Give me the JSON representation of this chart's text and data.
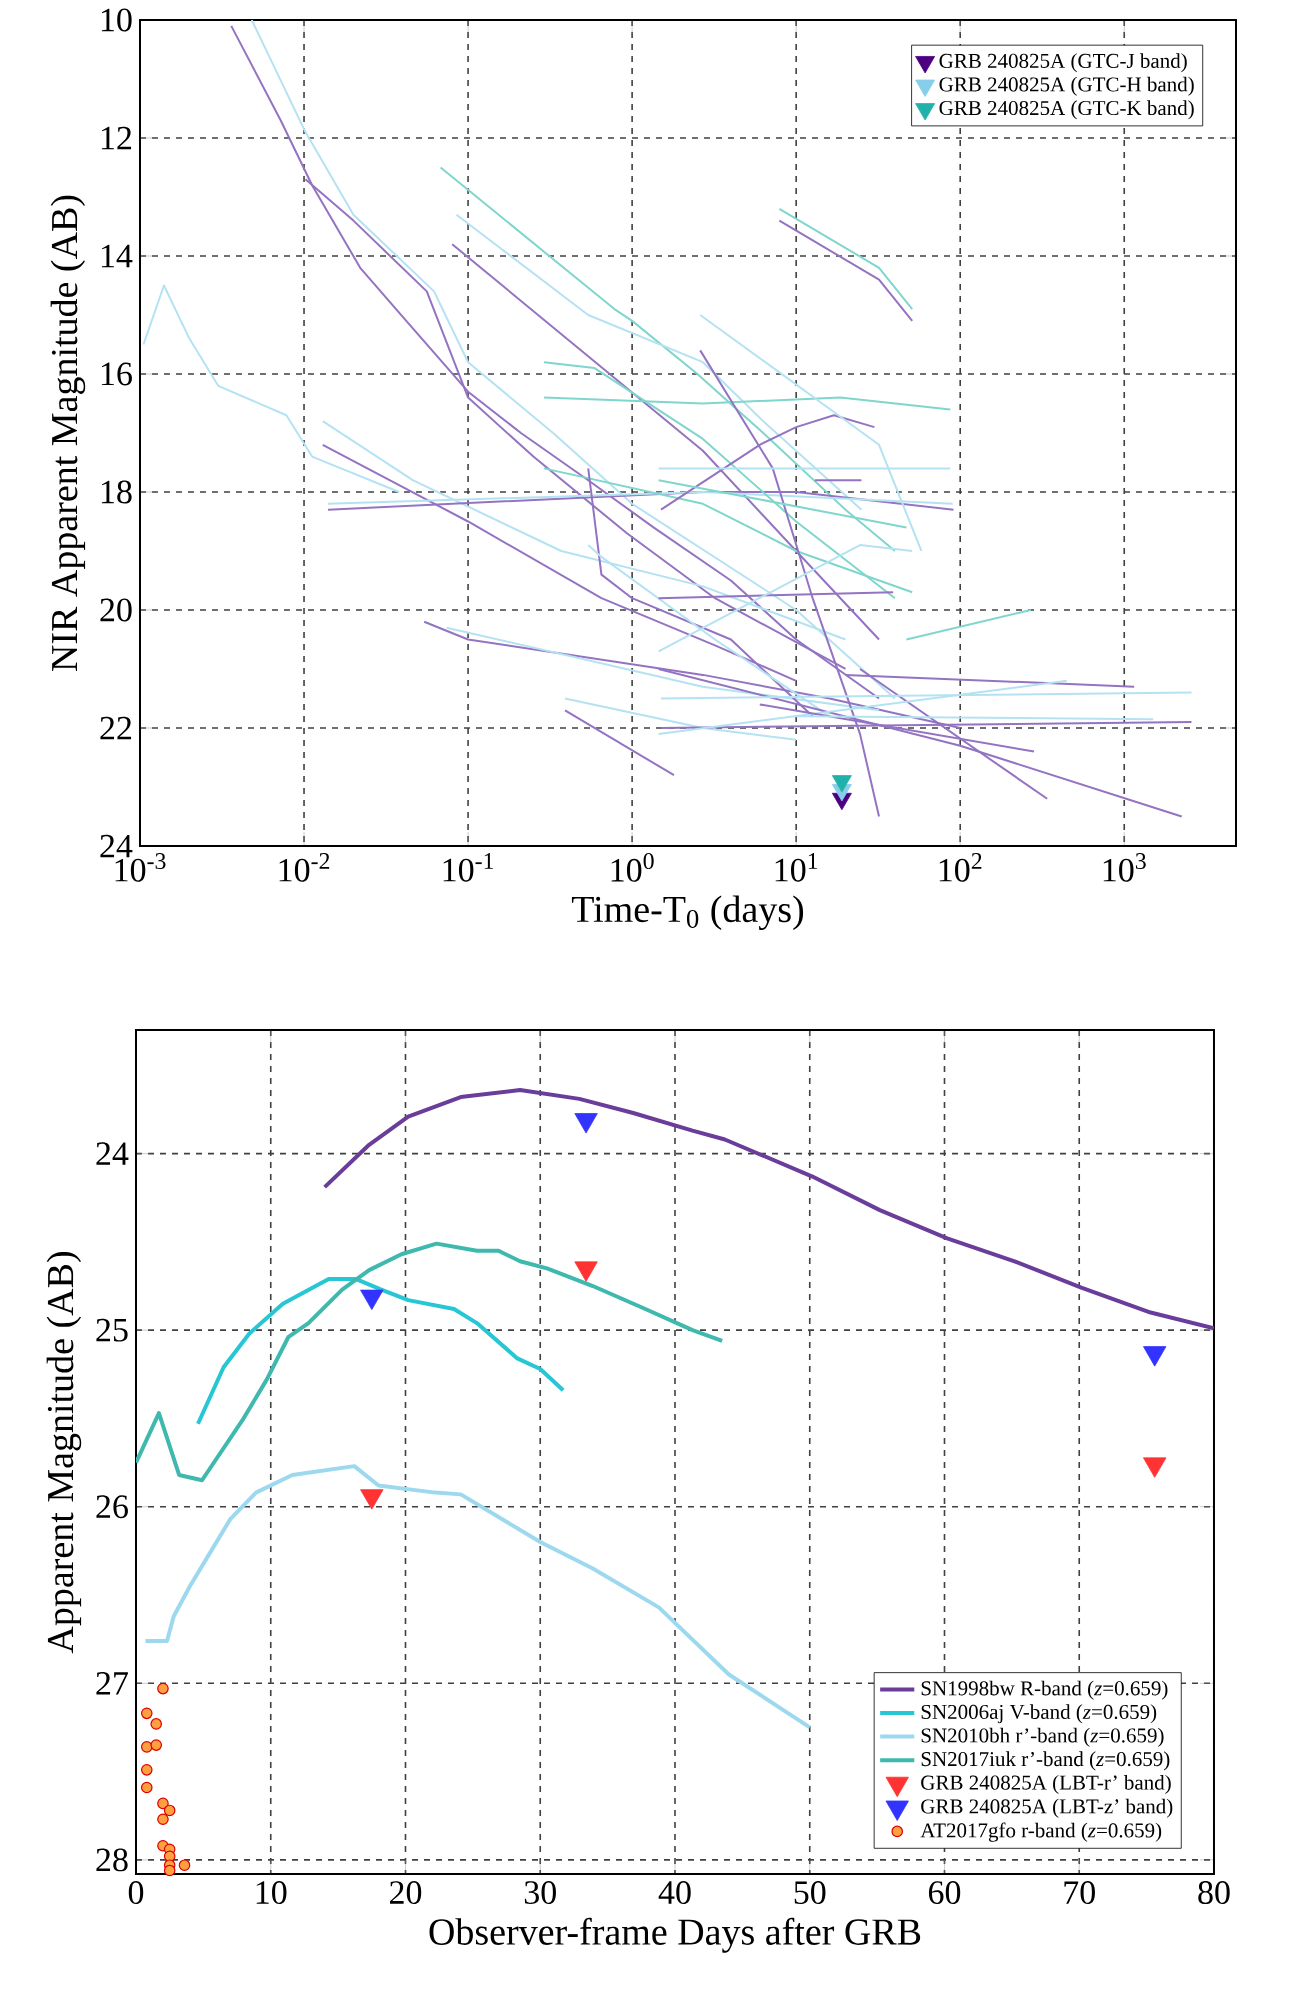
{
  "chart_data": [
    {
      "type": "line",
      "xlabel": "Time-T$_{0}$ (days)",
      "ylabel": "NIR Apparent Magnitude (AB)",
      "log": "x",
      "xlim": [
        0.001,
        4800
      ],
      "ylim": [
        24,
        10
      ],
      "grid": true,
      "legend": "top right",
      "xticks": [
        {
          "value": 0.001,
          "label": "10$^{-3}$"
        },
        {
          "value": 0.01,
          "label": "10$^{-2}$"
        },
        {
          "value": 0.1,
          "label": "10$^{-1}$"
        },
        {
          "value": 1,
          "label": "10$^{0}$"
        },
        {
          "value": 10,
          "label": "10$^{1}$"
        },
        {
          "value": 100,
          "label": "10$^{2}$"
        },
        {
          "value": 1000,
          "label": "10$^{3}$"
        }
      ],
      "yticks": [
        10,
        12,
        14,
        16,
        18,
        20,
        22,
        24
      ],
      "series": [
        {
          "color": "#9373c2",
          "x": [
            0.0036,
            0.0072,
            0.0112,
            0.022,
            0.042,
            0.1,
            0.21,
            0.54,
            1.35,
            4,
            10,
            32
          ],
          "values": [
            10.1,
            11.7,
            12.8,
            14.2,
            15.1,
            16.3,
            17.0,
            17.8,
            18.6,
            19.5,
            20.5,
            21.5
          ]
        },
        {
          "color": "#b5e2f2",
          "x": [
            0.0048,
            0.0102,
            0.02,
            0.062,
            0.1,
            0.33,
            1,
            10,
            40
          ],
          "values": [
            10.0,
            11.9,
            13.3,
            14.6,
            15.8,
            17.0,
            18.2,
            20.0,
            21.5
          ]
        },
        {
          "color": "#9373c2",
          "x": [
            0.0102,
            0.02,
            0.056,
            0.1,
            0.25,
            0.93,
            3.2,
            20
          ],
          "values": [
            12.7,
            13.4,
            14.6,
            16.4,
            17.4,
            18.7,
            19.8,
            21.0
          ]
        },
        {
          "color": "#b5e2f2",
          "x": [
            0.00105,
            0.0014,
            0.002,
            0.003,
            0.0078,
            0.0112,
            0.038
          ],
          "values": [
            15.5,
            14.5,
            15.4,
            16.2,
            16.7,
            17.4,
            18.0
          ]
        },
        {
          "color": "#7fd6cc",
          "x": [
            0.068,
            0.78,
            1,
            2.5,
            6.3,
            20,
            40
          ],
          "values": [
            12.5,
            14.9,
            15.1,
            16.0,
            17.0,
            18.3,
            19.0
          ]
        },
        {
          "color": "#b5e2f2",
          "x": [
            0.085,
            0.54,
            2.7,
            6.3,
            25
          ],
          "values": [
            13.3,
            15.0,
            15.8,
            16.8,
            18.3
          ]
        },
        {
          "color": "#9373c2",
          "x": [
            0.08,
            2.7,
            10,
            32
          ],
          "values": [
            13.8,
            17.3,
            19.0,
            20.5
          ]
        },
        {
          "color": "#b5e2f2",
          "x": [
            0.013,
            0.046,
            0.37,
            2.7,
            20
          ],
          "values": [
            16.8,
            17.8,
            19.0,
            19.6,
            20.5
          ]
        },
        {
          "color": "#9373c2",
          "x": [
            0.013,
            0.1,
            0.65,
            3.2,
            10
          ],
          "values": [
            17.2,
            18.5,
            19.8,
            20.6,
            21.2
          ]
        },
        {
          "color": "#9373c2",
          "x": [
            0.014,
            2.7,
            10,
            91
          ],
          "values": [
            18.3,
            18.0,
            18.0,
            18.3
          ]
        },
        {
          "color": "#b5e2f2",
          "x": [
            0.014,
            2.7,
            90
          ],
          "values": [
            18.2,
            18.0,
            18.2
          ]
        },
        {
          "color": "#9373c2",
          "x": [
            0.054,
            0.1,
            2.7,
            16,
            100
          ],
          "values": [
            20.2,
            20.5,
            21.1,
            21.5,
            22.0
          ]
        },
        {
          "color": "#b5e2f2",
          "x": [
            0.074,
            2.7,
            32
          ],
          "values": [
            20.3,
            21.3,
            21.7
          ]
        },
        {
          "color": "#b5e2f2",
          "x": [
            0.39,
            2.7,
            10
          ],
          "values": [
            21.5,
            22.0,
            22.2
          ]
        },
        {
          "color": "#9373c2",
          "x": [
            0.39,
            1.8
          ],
          "values": [
            21.7,
            22.8
          ]
        },
        {
          "color": "#7fd6cc",
          "x": [
            0.29,
            0.59,
            2.7,
            10,
            40
          ],
          "values": [
            15.8,
            15.9,
            17.1,
            18.5,
            19.8
          ]
        },
        {
          "color": "#7fd6cc",
          "x": [
            0.29,
            2.7,
            18.6,
            87
          ],
          "values": [
            16.4,
            16.5,
            16.4,
            16.6
          ]
        },
        {
          "color": "#7fd6cc",
          "x": [
            0.29,
            2.7,
            10,
            51
          ],
          "values": [
            17.6,
            18.2,
            19.0,
            19.7
          ]
        },
        {
          "color": "#9373c2",
          "x": [
            0.54,
            0.65,
            1,
            4,
            12.6
          ],
          "values": [
            17.6,
            19.4,
            19.8,
            20.5,
            21.8
          ]
        },
        {
          "color": "#b5e2f2",
          "x": [
            0.54,
            0.65,
            3.2,
            16
          ],
          "values": [
            18.9,
            19.1,
            20.5,
            21.8
          ]
        },
        {
          "color": "#7fd6cc",
          "x": [
            7.9,
            32,
            51
          ],
          "values": [
            13.2,
            14.2,
            14.9
          ]
        },
        {
          "color": "#9373c2",
          "x": [
            7.9,
            32,
            51
          ],
          "values": [
            13.4,
            14.4,
            15.1
          ]
        },
        {
          "color": "#9373c2",
          "x": [
            1.5,
            6,
            10,
            17,
            30
          ],
          "values": [
            18.3,
            17.2,
            16.9,
            16.7,
            16.9
          ]
        },
        {
          "color": "#9373c2",
          "x": [
            2.6,
            7.2,
            12.6,
            24.5,
            32
          ],
          "values": [
            15.6,
            17.6,
            19.8,
            22.1,
            23.5
          ]
        },
        {
          "color": "#9373c2",
          "x": [
            1.45,
            100,
            2240
          ],
          "values": [
            21.0,
            22.3,
            23.5
          ]
        },
        {
          "color": "#9373c2",
          "x": [
            24.5,
            339
          ],
          "values": [
            21.0,
            23.2
          ]
        },
        {
          "color": "#9373c2",
          "x": [
            1.5,
            2570
          ],
          "values": [
            22.0,
            21.9
          ]
        },
        {
          "color": "#b5e2f2",
          "x": [
            1.5,
            2570
          ],
          "values": [
            21.5,
            21.4
          ]
        },
        {
          "color": "#9373c2",
          "x": [
            20,
            1150
          ],
          "values": [
            21.1,
            21.3
          ]
        },
        {
          "color": "#7fd6cc",
          "x": [
            47,
            270
          ],
          "values": [
            20.5,
            20.0
          ]
        },
        {
          "color": "#b5e2f2",
          "x": [
            1.45,
            87
          ],
          "values": [
            17.6,
            17.6
          ]
        },
        {
          "color": "#9373c2",
          "x": [
            13,
            25
          ],
          "values": [
            17.8,
            17.8
          ]
        },
        {
          "color": "#b5e2f2",
          "x": [
            2.6,
            32,
            58
          ],
          "values": [
            15.0,
            17.2,
            19.0
          ]
        },
        {
          "color": "#7fd6cc",
          "x": [
            1.45,
            47
          ],
          "values": [
            17.8,
            18.6
          ]
        },
        {
          "color": "#b5e2f2",
          "x": [
            1.45,
            447
          ],
          "values": [
            22.1,
            21.2
          ]
        },
        {
          "color": "#9373c2",
          "x": [
            1.45,
            39
          ],
          "values": [
            19.8,
            19.7
          ]
        },
        {
          "color": "#b5e2f2",
          "x": [
            1.45,
            24.5,
            51
          ],
          "values": [
            20.7,
            18.9,
            19.0
          ]
        },
        {
          "color": "#9373c2",
          "x": [
            6,
            282
          ],
          "values": [
            21.6,
            22.4
          ]
        },
        {
          "color": "#b5e2f2",
          "x": [
            10,
            1500
          ],
          "values": [
            21.8,
            21.85
          ]
        },
        {
          "type": "scatter",
          "marker": "triangle",
          "name": "GRB 240825A (GTC-J band)",
          "color": "#4b0082",
          "x": [
            19
          ],
          "values": [
            23.2
          ]
        },
        {
          "type": "scatter",
          "marker": "triangle",
          "name": "GRB 240825A (GTC-H band)",
          "color": "#87ceeb",
          "x": [
            19
          ],
          "values": [
            23.05
          ]
        },
        {
          "type": "scatter",
          "marker": "triangle",
          "name": "GRB 240825A (GTC-K band)",
          "color": "#20b2aa",
          "x": [
            19
          ],
          "values": [
            22.9
          ]
        }
      ]
    },
    {
      "type": "line",
      "xlabel": "Observer-frame Days after GRB",
      "ylabel": "Apparent Magnitude (AB)",
      "xlim": [
        0,
        80
      ],
      "ylim": [
        28.08,
        23.3
      ],
      "grid": true,
      "legend": "bottom right",
      "xticks": [
        0,
        10,
        20,
        30,
        40,
        50,
        60,
        70,
        80
      ],
      "yticks": [
        24,
        25,
        26,
        27,
        28
      ],
      "series": [
        {
          "name": "SN1998bw R-band (*z*=0.659)",
          "color": "#6a3d9a",
          "x": [
            14.0,
            17.3,
            20.2,
            24.1,
            28.5,
            32.9,
            36.9,
            41.3,
            43.7,
            50.2,
            55.2,
            60.2,
            65.2,
            70.2,
            75.3,
            80
          ],
          "values": [
            24.19,
            23.95,
            23.79,
            23.68,
            23.64,
            23.69,
            23.77,
            23.87,
            23.92,
            24.13,
            24.32,
            24.48,
            24.61,
            24.76,
            24.9,
            24.99
          ]
        },
        {
          "name": "SN2006aj V-band (*z*=0.659)",
          "color": "#27c6d4",
          "x": [
            4.6,
            6.5,
            8.4,
            10.9,
            14.3,
            16.3,
            18.2,
            20.2,
            23.6,
            25.3,
            28.3,
            30.0,
            31.7
          ],
          "values": [
            25.53,
            25.21,
            25.02,
            24.85,
            24.71,
            24.71,
            24.77,
            24.83,
            24.88,
            24.96,
            25.16,
            25.22,
            25.34
          ]
        },
        {
          "name": "SN2010bh r’-band (*z*=0.659)",
          "color": "#9dd9ee",
          "x": [
            0.7,
            2.3,
            2.8,
            4.0,
            5.5,
            7.0,
            8.9,
            11.6,
            16.2,
            18.0,
            22.2,
            24.1,
            30.0,
            33.9,
            38.8,
            44.0,
            50.0
          ],
          "values": [
            26.76,
            26.76,
            26.62,
            26.45,
            26.26,
            26.07,
            25.92,
            25.82,
            25.77,
            25.88,
            25.92,
            25.93,
            26.2,
            26.35,
            26.57,
            26.95,
            27.25
          ]
        },
        {
          "name": "SN2017iuk r’-band (*z*=0.659)",
          "color": "#3fb8ae",
          "x": [
            0,
            1.7,
            3.2,
            4.9,
            7.9,
            9.7,
            11.3,
            12.8,
            15.3,
            17.3,
            19.7,
            22.3,
            25.3,
            26.9,
            28.5,
            30.5,
            33.9,
            37.8,
            41.3,
            43.5
          ],
          "values": [
            25.75,
            25.47,
            25.82,
            25.85,
            25.51,
            25.28,
            25.04,
            24.96,
            24.77,
            24.66,
            24.57,
            24.51,
            24.55,
            24.55,
            24.61,
            24.65,
            24.75,
            24.88,
            25.0,
            25.06
          ]
        },
        {
          "type": "scatter",
          "marker": "triangle",
          "name": "GRB 240825A (LBT-r’ band)",
          "color": "#ff3333",
          "x": [
            17.5,
            33.4,
            75.6
          ],
          "values": [
            25.94,
            24.65,
            25.76
          ]
        },
        {
          "type": "scatter",
          "marker": "triangle",
          "name": "GRB 240825A (LBT-z’ band)",
          "color": "#3333ff",
          "x": [
            17.5,
            33.4,
            75.6
          ],
          "values": [
            24.81,
            23.81,
            25.13
          ]
        },
        {
          "type": "scatter",
          "marker": "circle",
          "name": "AT2017gfo r-band (*z*=0.659)",
          "color": "#ffa040",
          "x": [
            2.0,
            0.8,
            1.5,
            0.8,
            1.5,
            0.8,
            0.8,
            2.0,
            2.5,
            2.0,
            2.0,
            2.5,
            2.5,
            3.6,
            2.5,
            2.5
          ],
          "values": [
            27.03,
            27.17,
            27.23,
            27.36,
            27.35,
            27.49,
            27.59,
            27.68,
            27.72,
            27.77,
            27.92,
            27.94,
            27.98,
            28.03,
            28.03,
            28.06
          ]
        }
      ]
    }
  ]
}
